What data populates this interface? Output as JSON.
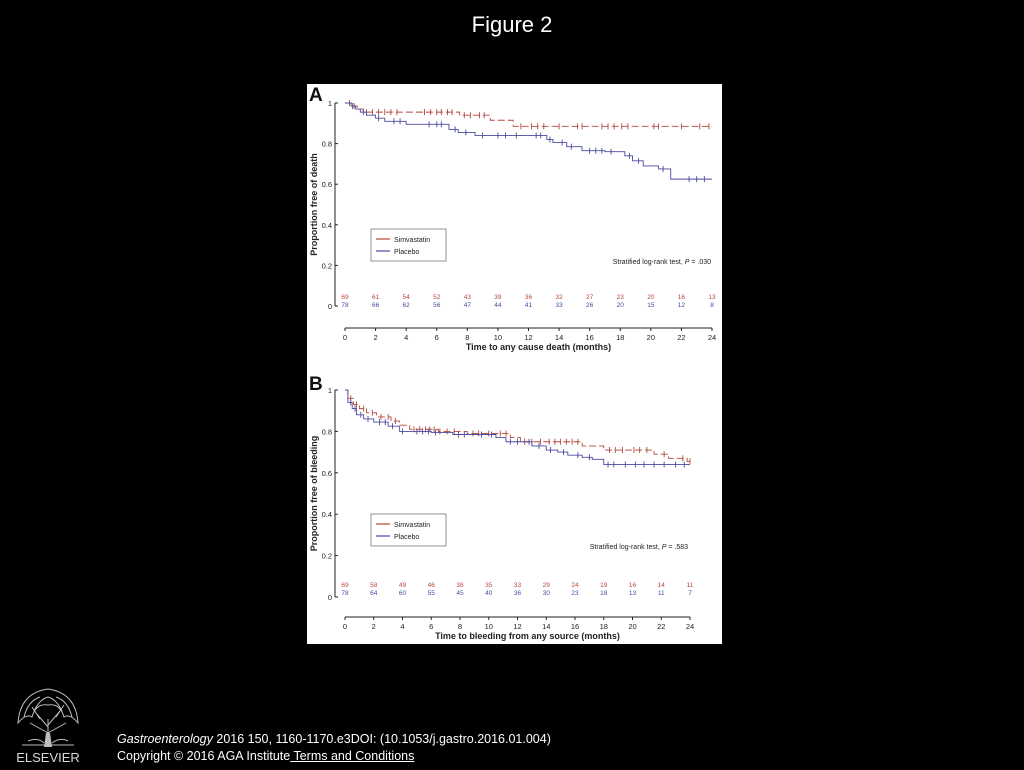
{
  "slide": {
    "title": "Figure 2",
    "logo_text": "ELSEVIER",
    "journal": "Gastroenterology",
    "citation_rest": " 2016 150, 1160-1170.e3DOI: (10.1053/j.gastro.2016.01.004)",
    "copyright": "Copyright © 2016 AGA Institute",
    "terms_link": " Terms and Conditions"
  },
  "colors": {
    "simvastatin": "#b3473a",
    "placebo": "#4b4aa0",
    "axis": "#222222"
  },
  "chart_data": [
    {
      "type": "line",
      "panel_label": "A",
      "title": "",
      "xlabel": "Time to any cause death (months)",
      "ylabel": "Proportion free of death",
      "xlim": [
        0,
        24
      ],
      "ylim": [
        0,
        1
      ],
      "xticks": [
        0,
        2,
        4,
        6,
        8,
        10,
        12,
        14,
        16,
        18,
        20,
        22,
        24
      ],
      "yticks": [
        0,
        0.2,
        0.4,
        0.6,
        0.8,
        1
      ],
      "grid": false,
      "legend_position": "lower-left",
      "annotation": {
        "prefix": "Stratified log-rank test, ",
        "italic": "P",
        "suffix": " = .030"
      },
      "risk_times": [
        0,
        2,
        4,
        6,
        8,
        10,
        12,
        14,
        16,
        18,
        20,
        22,
        24
      ],
      "series": [
        {
          "name": "Simvastatin",
          "color_key": "simvastatin",
          "dashed": true,
          "steps": [
            [
              0,
              1
            ],
            [
              0.5,
              0.985
            ],
            [
              0.8,
              0.97
            ],
            [
              1.2,
              0.955
            ],
            [
              4.5,
              0.955
            ],
            [
              7.5,
              0.94
            ],
            [
              9.5,
              0.915
            ],
            [
              11,
              0.885
            ],
            [
              24,
              0.885
            ]
          ],
          "censor_times": [
            0.3,
            0.6,
            1.4,
            1.8,
            2.2,
            2.6,
            3.0,
            3.4,
            5.2,
            5.6,
            6.0,
            6.3,
            6.7,
            7.0,
            7.8,
            8.2,
            8.8,
            9.1,
            11.5,
            12.2,
            12.6,
            13.0,
            14.0,
            15.2,
            15.5,
            16.8,
            17.2,
            17.6,
            18.1,
            18.5,
            20.2,
            20.5,
            22.0,
            23.2,
            23.8
          ],
          "at_risk": [
            69,
            61,
            54,
            52,
            43,
            39,
            36,
            32,
            27,
            23,
            20,
            16,
            13
          ]
        },
        {
          "name": "Placebo",
          "color_key": "placebo",
          "dashed": false,
          "steps": [
            [
              0,
              1
            ],
            [
              0.4,
              0.985
            ],
            [
              0.7,
              0.97
            ],
            [
              1.0,
              0.955
            ],
            [
              1.4,
              0.94
            ],
            [
              2.0,
              0.925
            ],
            [
              2.6,
              0.91
            ],
            [
              4.0,
              0.895
            ],
            [
              6.8,
              0.87
            ],
            [
              7.4,
              0.855
            ],
            [
              8.5,
              0.84
            ],
            [
              13.2,
              0.82
            ],
            [
              13.6,
              0.805
            ],
            [
              14.5,
              0.785
            ],
            [
              15.5,
              0.765
            ],
            [
              17.0,
              0.76
            ],
            [
              18.3,
              0.74
            ],
            [
              18.8,
              0.715
            ],
            [
              19.5,
              0.69
            ],
            [
              20.5,
              0.675
            ],
            [
              21.3,
              0.625
            ],
            [
              24,
              0.625
            ]
          ],
          "censor_times": [
            0.5,
            1.2,
            2.2,
            3.2,
            3.6,
            5.5,
            6.0,
            6.3,
            7.2,
            7.9,
            9.0,
            10.0,
            10.5,
            11.2,
            12.5,
            12.8,
            13.4,
            14.2,
            14.8,
            16.0,
            16.4,
            16.8,
            17.4,
            18.6,
            19.2,
            20.8,
            22.5,
            23.0,
            23.5
          ],
          "at_risk": [
            78,
            66,
            62,
            56,
            47,
            44,
            41,
            33,
            26,
            20,
            15,
            12,
            8
          ]
        }
      ]
    },
    {
      "type": "line",
      "panel_label": "B",
      "title": "",
      "xlabel": "Time to bleeding from any source (months)",
      "ylabel": "Proportion free of bleeding",
      "xlim": [
        0,
        24
      ],
      "ylim": [
        0,
        1
      ],
      "xticks": [
        0,
        2,
        4,
        6,
        8,
        10,
        12,
        14,
        16,
        18,
        20,
        22,
        24
      ],
      "yticks": [
        0,
        0.2,
        0.4,
        0.6,
        0.8,
        1
      ],
      "grid": false,
      "legend_position": "lower-left",
      "annotation": {
        "prefix": "Stratified log-rank test, ",
        "italic": "P",
        "suffix": " = .583"
      },
      "risk_times": [
        0,
        2,
        4,
        6,
        8,
        10,
        12,
        14,
        16,
        18,
        20,
        22,
        24
      ],
      "series": [
        {
          "name": "Simvastatin",
          "color_key": "simvastatin",
          "dashed": true,
          "steps": [
            [
              0,
              1
            ],
            [
              0.2,
              0.96
            ],
            [
              0.6,
              0.93
            ],
            [
              1.0,
              0.91
            ],
            [
              1.5,
              0.89
            ],
            [
              2.2,
              0.87
            ],
            [
              3.2,
              0.85
            ],
            [
              3.8,
              0.83
            ],
            [
              4.5,
              0.81
            ],
            [
              6.5,
              0.8
            ],
            [
              8.5,
              0.79
            ],
            [
              11.5,
              0.77
            ],
            [
              12.2,
              0.75
            ],
            [
              16.5,
              0.73
            ],
            [
              18.0,
              0.71
            ],
            [
              21.5,
              0.69
            ],
            [
              22.5,
              0.67
            ],
            [
              23.8,
              0.655
            ],
            [
              24,
              0.655
            ]
          ],
          "censor_times": [
            0.4,
            0.8,
            1.3,
            1.9,
            2.5,
            3.0,
            3.5,
            4.8,
            5.2,
            5.6,
            5.9,
            6.2,
            6.6,
            7.1,
            7.6,
            8.9,
            9.3,
            10.0,
            10.8,
            11.2,
            12.5,
            13.0,
            13.6,
            14.2,
            14.6,
            15.0,
            15.4,
            15.8,
            16.2,
            18.4,
            18.8,
            19.3,
            20.1,
            20.5,
            21.0,
            22.2,
            23.5,
            24.0
          ],
          "at_risk": [
            69,
            58,
            49,
            46,
            38,
            35,
            33,
            29,
            24,
            19,
            16,
            14,
            11
          ]
        },
        {
          "name": "Placebo",
          "color_key": "placebo",
          "dashed": false,
          "steps": [
            [
              0,
              1
            ],
            [
              0.2,
              0.94
            ],
            [
              0.5,
              0.91
            ],
            [
              0.8,
              0.88
            ],
            [
              1.3,
              0.86
            ],
            [
              2.0,
              0.845
            ],
            [
              3.0,
              0.825
            ],
            [
              3.8,
              0.8
            ],
            [
              6.0,
              0.795
            ],
            [
              7.5,
              0.785
            ],
            [
              10.5,
              0.77
            ],
            [
              11.2,
              0.75
            ],
            [
              13.0,
              0.73
            ],
            [
              14.0,
              0.71
            ],
            [
              14.8,
              0.7
            ],
            [
              15.5,
              0.685
            ],
            [
              16.5,
              0.675
            ],
            [
              17.2,
              0.665
            ],
            [
              18.0,
              0.64
            ],
            [
              24,
              0.64
            ]
          ],
          "censor_times": [
            0.4,
            0.7,
            1.1,
            1.6,
            2.4,
            2.8,
            3.3,
            4.0,
            5.0,
            5.4,
            5.8,
            6.3,
            7.9,
            8.3,
            9.5,
            10.2,
            11.5,
            12.0,
            12.8,
            13.5,
            14.3,
            15.2,
            16.2,
            17.0,
            18.3,
            18.7,
            19.5,
            20.2,
            20.8,
            21.5,
            22.2,
            23.0,
            23.6
          ],
          "at_risk": [
            78,
            64,
            60,
            55,
            45,
            40,
            36,
            30,
            23,
            18,
            13,
            11,
            7
          ]
        }
      ]
    }
  ]
}
